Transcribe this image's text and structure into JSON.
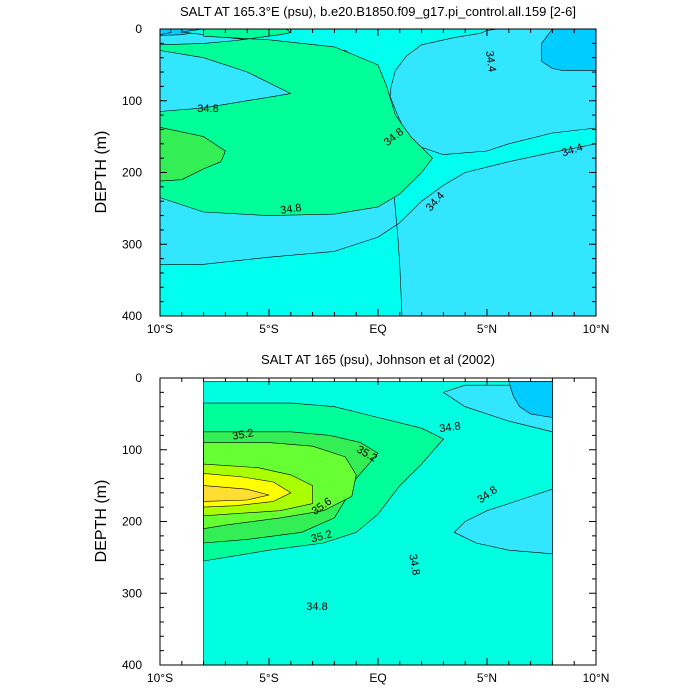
{
  "chart_data": [
    {
      "type": "contour",
      "title": "SALT AT 165.3°E (psu), b.e20.B1850.f09_g17.pi_control.all.159 [2-6]",
      "ylabel": "DEPTH (m)",
      "xlim": [
        -10,
        10
      ],
      "ylim": [
        0,
        400
      ],
      "y_reversed": true,
      "x_ticks": [
        {
          "value": -10,
          "label": "10°S"
        },
        {
          "value": -5,
          "label": "5°S"
        },
        {
          "value": 0,
          "label": "EQ"
        },
        {
          "value": 5,
          "label": "5°N"
        },
        {
          "value": 10,
          "label": "10°N"
        }
      ],
      "y_ticks": [
        {
          "value": 0,
          "label": "0"
        },
        {
          "value": 100,
          "label": "100"
        },
        {
          "value": 200,
          "label": "200"
        },
        {
          "value": 300,
          "label": "300"
        },
        {
          "value": 400,
          "label": "400"
        }
      ],
      "background": "#33e6ff",
      "regions": [
        {
          "level": "34.2",
          "color": "#00ccff",
          "points": [
            [
              -10,
              0
            ],
            [
              -8,
              0
            ],
            [
              -8,
              3
            ],
            [
              -9,
              8
            ],
            [
              -10,
              9
            ]
          ]
        },
        {
          "level": "34.6",
          "color": "#00ffee",
          "points": [
            [
              -8,
              0
            ],
            [
              5.5,
              0
            ],
            [
              5,
              2
            ],
            [
              4.7,
              6
            ],
            [
              3.5,
              12
            ],
            [
              2,
              22
            ],
            [
              1.3,
              38
            ],
            [
              0.8,
              58
            ],
            [
              0.6,
              80
            ],
            [
              0.5,
              110
            ],
            [
              0.6,
              160
            ],
            [
              0.7,
              220
            ],
            [
              0.9,
              285
            ],
            [
              1,
              330
            ],
            [
              1.1,
              400
            ],
            [
              -10,
              400
            ],
            [
              -10,
              328
            ],
            [
              -8,
              328
            ],
            [
              -5,
              318
            ],
            [
              -2,
              310
            ],
            [
              0,
              290
            ],
            [
              1,
              270
            ],
            [
              2,
              240
            ],
            [
              3,
              218
            ],
            [
              4,
              200
            ],
            [
              6,
              185
            ],
            [
              8,
              172
            ],
            [
              10,
              160
            ],
            [
              10,
              138
            ],
            [
              8,
              145
            ],
            [
              6,
              160
            ],
            [
              5,
              170
            ],
            [
              3,
              175
            ],
            [
              1.5,
              160
            ],
            [
              0.9,
              120
            ],
            [
              0.5,
              90
            ],
            [
              0,
              60
            ],
            [
              -1.5,
              30
            ],
            [
              -4,
              20
            ],
            [
              -6,
              15
            ],
            [
              -8,
              8
            ],
            [
              -9,
              4
            ]
          ]
        },
        {
          "level": "34.8",
          "color": "#00ff99",
          "points": [
            [
              -8,
              0
            ],
            [
              -4.2,
              0
            ],
            [
              -4,
              5
            ],
            [
              -4.5,
              8
            ],
            [
              -5.5,
              12
            ],
            [
              -6.5,
              16
            ],
            [
              -8,
              20
            ],
            [
              -10,
              22
            ],
            [
              -10,
              30
            ],
            [
              -9,
              35
            ],
            [
              -8,
              40
            ],
            [
              -6,
              60
            ],
            [
              -4,
              90
            ],
            [
              -8,
              110
            ],
            [
              -10,
              115
            ],
            [
              -10,
              235
            ],
            [
              -8,
              255
            ],
            [
              -5,
              260
            ],
            [
              -2,
              258
            ],
            [
              0,
              248
            ],
            [
              1,
              230
            ],
            [
              2,
              200
            ],
            [
              2.5,
              180
            ],
            [
              1.5,
              150
            ],
            [
              0.8,
              120
            ],
            [
              0.4,
              80
            ],
            [
              0,
              50
            ],
            [
              -2,
              25
            ],
            [
              -5,
              15
            ],
            [
              -8,
              10
            ]
          ]
        },
        {
          "level": "35.0",
          "color": "#33ee55",
          "points": [
            [
              -10,
              137
            ],
            [
              -8,
              150
            ],
            [
              -7,
              170
            ],
            [
              -7.2,
              185
            ],
            [
              -8,
              195
            ],
            [
              -9,
              210
            ],
            [
              -10,
              212
            ]
          ]
        },
        {
          "level": "34.4",
          "color": "#00ccff",
          "points": [
            [
              8,
              0
            ],
            [
              10,
              0
            ],
            [
              10,
              58
            ],
            [
              8.5,
              58
            ],
            [
              8,
              55
            ],
            [
              7.5,
              45
            ],
            [
              7.5,
              20
            ]
          ]
        },
        {
          "level": "34.2",
          "color": "#00ccff",
          "points": [
            [
              -10,
              0
            ],
            [
              -9.5,
              0
            ],
            [
              -9.5,
              5
            ],
            [
              -10,
              8
            ]
          ]
        }
      ],
      "contour_labels": [
        {
          "text": "34.8",
          "x": -7.8,
          "y": 110,
          "angle": 0
        },
        {
          "text": "34.8",
          "x": 0.7,
          "y": 150,
          "angle": -38
        },
        {
          "text": "34.8",
          "x": -4,
          "y": 250,
          "angle": -8
        },
        {
          "text": "34.4",
          "x": 5.2,
          "y": 45,
          "angle": 82
        },
        {
          "text": "34.4",
          "x": 8.9,
          "y": 168,
          "angle": -18
        },
        {
          "text": "34.4",
          "x": 2.6,
          "y": 240,
          "angle": -48
        }
      ]
    },
    {
      "type": "contour",
      "title": "SALT AT 165 (psu), Johnson et al (2002)",
      "ylabel": "DEPTH (m)",
      "xlim": [
        -10,
        10
      ],
      "ylim": [
        0,
        400
      ],
      "y_reversed": true,
      "data_xlim": [
        -8,
        8
      ],
      "data_ylim": [
        5,
        400
      ],
      "x_ticks": [
        {
          "value": -10,
          "label": "10°S"
        },
        {
          "value": -5,
          "label": "5°S"
        },
        {
          "value": 0,
          "label": "EQ"
        },
        {
          "value": 5,
          "label": "5°N"
        },
        {
          "value": 10,
          "label": "10°N"
        }
      ],
      "y_ticks": [
        {
          "value": 0,
          "label": "0"
        },
        {
          "value": 100,
          "label": "100"
        },
        {
          "value": 200,
          "label": "200"
        },
        {
          "value": 300,
          "label": "300"
        },
        {
          "value": 400,
          "label": "400"
        }
      ],
      "background": "#00ffe0",
      "regions": [
        {
          "level": "34.6",
          "color": "#00ffe0",
          "points": [
            [
              -8,
              5
            ],
            [
              8,
              5
            ],
            [
              8,
              400
            ],
            [
              -8,
              400
            ]
          ]
        },
        {
          "level": "34.4",
          "color": "#33e6ff",
          "points": [
            [
              4,
              10
            ],
            [
              8,
              10
            ],
            [
              8,
              245
            ],
            [
              6,
              240
            ],
            [
              4.5,
              230
            ],
            [
              3.5,
              215
            ],
            [
              4,
              200
            ],
            [
              5,
              185
            ],
            [
              6,
              175
            ],
            [
              7,
              165
            ],
            [
              8,
              155
            ],
            [
              8,
              75
            ],
            [
              6,
              60
            ],
            [
              4,
              40
            ],
            [
              3,
              20
            ]
          ]
        },
        {
          "level": "34.2",
          "color": "#00ccff",
          "points": [
            [
              6,
              5
            ],
            [
              8,
              5
            ],
            [
              8,
              55
            ],
            [
              7,
              50
            ],
            [
              6.5,
              40
            ],
            [
              6.2,
              25
            ]
          ]
        },
        {
          "level": "34.8",
          "color": "#00ff99",
          "points": [
            [
              -8,
              35
            ],
            [
              -4,
              35
            ],
            [
              -2,
              40
            ],
            [
              0,
              55
            ],
            [
              2,
              70
            ],
            [
              3,
              85
            ],
            [
              2,
              120
            ],
            [
              1,
              150
            ],
            [
              0,
              190
            ],
            [
              -1,
              215
            ],
            [
              -2.5,
              230
            ],
            [
              -5,
              240
            ],
            [
              -8,
              255
            ],
            [
              -8,
              60
            ]
          ]
        },
        {
          "level": "35.0",
          "color": "#33ee55",
          "points": [
            [
              -8,
              75
            ],
            [
              -4,
              75
            ],
            [
              -2.2,
              80
            ],
            [
              -0.8,
              90
            ],
            [
              0,
              105
            ],
            [
              -1,
              140
            ],
            [
              -1.5,
              170
            ],
            [
              -2,
              195
            ],
            [
              -3.5,
              215
            ],
            [
              -6,
              225
            ],
            [
              -8,
              230
            ]
          ]
        },
        {
          "level": "35.2",
          "color": "#66ff33",
          "points": [
            [
              -8,
              90
            ],
            [
              -5,
              90
            ],
            [
              -3,
              95
            ],
            [
              -1.5,
              110
            ],
            [
              -1,
              135
            ],
            [
              -1.2,
              165
            ],
            [
              -2.5,
              185
            ],
            [
              -4.5,
              195
            ],
            [
              -7,
              205
            ],
            [
              -8,
              210
            ]
          ]
        },
        {
          "level": "35.4",
          "color": "#aaff00",
          "points": [
            [
              -8,
              120
            ],
            [
              -5.5,
              125
            ],
            [
              -4,
              135
            ],
            [
              -3,
              150
            ],
            [
              -3,
              175
            ],
            [
              -4.5,
              185
            ],
            [
              -7,
              190
            ],
            [
              -8,
              192
            ]
          ]
        },
        {
          "level": "35.6",
          "color": "#ffff00",
          "points": [
            [
              -8,
              133
            ],
            [
              -6.2,
              138
            ],
            [
              -4.8,
              145
            ],
            [
              -4,
              160
            ],
            [
              -4.8,
              172
            ],
            [
              -6.5,
              178
            ],
            [
              -8,
              180
            ]
          ]
        },
        {
          "level": "35.8",
          "color": "#ffdd33",
          "points": [
            [
              -8,
              150
            ],
            [
              -6,
              155
            ],
            [
              -5,
              163
            ],
            [
              -6,
              170
            ],
            [
              -8,
              172
            ]
          ]
        }
      ],
      "contour_labels": [
        {
          "text": "35.2",
          "x": -6.2,
          "y": 78,
          "angle": -10
        },
        {
          "text": "35.2",
          "x": -0.5,
          "y": 105,
          "angle": 30
        },
        {
          "text": "34.8",
          "x": 3.3,
          "y": 68,
          "angle": -8
        },
        {
          "text": "35.6",
          "x": -2.6,
          "y": 178,
          "angle": -35
        },
        {
          "text": "35.2",
          "x": -2.6,
          "y": 220,
          "angle": -15
        },
        {
          "text": "34.8",
          "x": 5,
          "y": 162,
          "angle": -35
        },
        {
          "text": "34.8",
          "x": 1.7,
          "y": 260,
          "angle": 80
        },
        {
          "text": "34.8",
          "x": -2.8,
          "y": 318,
          "angle": 0
        }
      ]
    }
  ]
}
